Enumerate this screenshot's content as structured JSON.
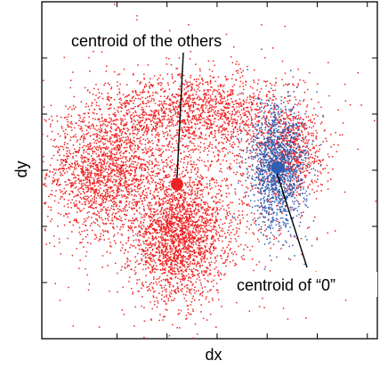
{
  "chart_data": {
    "type": "scatter",
    "title": "",
    "xlabel": "dx",
    "ylabel": "dy",
    "xlim": [
      -3.5,
      3.2
    ],
    "ylim": [
      -3.0,
      3.0
    ],
    "grid": false,
    "x_ticks": [
      -2,
      -1,
      0,
      1,
      2,
      3
    ],
    "y_ticks": [
      -2,
      -1,
      0,
      1,
      2
    ],
    "tick_labels_shown": false,
    "series": [
      {
        "color": "#ee2222",
        "point_count": 7000,
        "approx_centroid": [
          -0.8,
          -0.25
        ],
        "clusters": [
          {
            "label": "left lobe",
            "center": [
              -2.3,
              0.0
            ],
            "spread": [
              0.55,
              0.55
            ],
            "share": 0.22
          },
          {
            "label": "lower lobe",
            "center": [
              -0.8,
              -1.2
            ],
            "spread": [
              0.45,
              0.55
            ],
            "share": 0.28
          },
          {
            "label": "upper arc",
            "center": [
              -0.4,
              1.05
            ],
            "spread": [
              1.0,
              0.35
            ],
            "share": 0.2
          },
          {
            "label": "right lobe",
            "center": [
              1.45,
              0.35
            ],
            "spread": [
              0.35,
              0.4
            ],
            "share": 0.1
          },
          {
            "label": "diffuse",
            "center": [
              -0.6,
              -0.2
            ],
            "spread": [
              1.2,
              1.0
            ],
            "share": 0.2
          }
        ]
      },
      {
        "name": "0",
        "color": "#2f5fb3",
        "point_count": 1400,
        "approx_centroid": [
          1.2,
          0.05
        ],
        "clusters": [
          {
            "label": "core",
            "center": [
              1.2,
              0.05
            ],
            "spread": [
              0.28,
              0.55
            ],
            "share": 1.0
          }
        ]
      }
    ],
    "annotations": [
      {
        "text": "centroid of the others",
        "marker": {
          "x": -0.8,
          "y": -0.25,
          "color": "#ee2222"
        },
        "label_pos": "top-left"
      },
      {
        "text": "centroid of “0”",
        "marker": {
          "x": 1.2,
          "y": 0.05,
          "color": "#2f5fb3"
        },
        "label_pos": "bottom-right"
      }
    ]
  }
}
